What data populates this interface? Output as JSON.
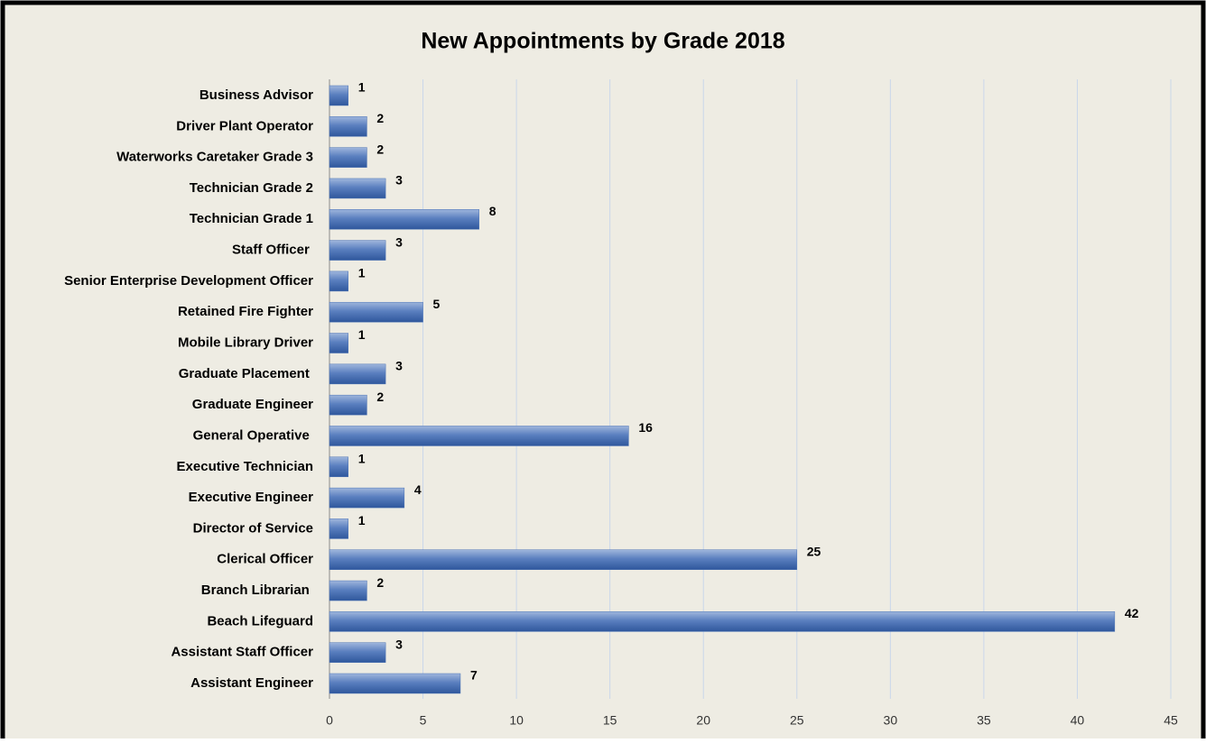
{
  "chart_data": {
    "type": "bar",
    "orientation": "horizontal",
    "title": "New Appointments by Grade 2018",
    "categories": [
      "Business Advisor",
      "Driver Plant Operator",
      "Waterworks Caretaker Grade 3",
      "Technician Grade 2",
      "Technician Grade 1",
      "Staff Officer ",
      "Senior Enterprise Development Officer",
      "Retained Fire Fighter",
      "Mobile Library Driver",
      "Graduate Placement ",
      "Graduate Engineer",
      "General Operative ",
      "Executive Technician",
      "Executive Engineer",
      "Director of Service",
      "Clerical Officer",
      "Branch Librarian ",
      "Beach Lifeguard",
      "Assistant Staff Officer",
      "Assistant Engineer"
    ],
    "values": [
      1,
      2,
      2,
      3,
      8,
      3,
      1,
      5,
      1,
      3,
      2,
      16,
      1,
      4,
      1,
      25,
      2,
      42,
      3,
      7
    ],
    "color": "#4a72b5",
    "xlim": [
      0,
      45
    ],
    "xticks": [
      0,
      5,
      10,
      15,
      20,
      25,
      30,
      35,
      40,
      45
    ],
    "grid": true
  }
}
